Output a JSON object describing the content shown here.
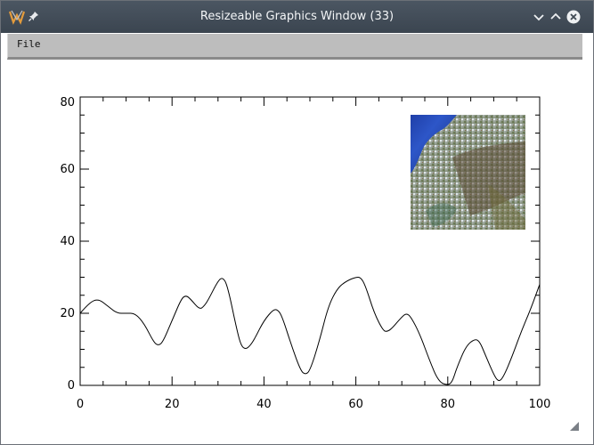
{
  "window": {
    "title": "Resizeable Graphics Window (33)",
    "menu": [
      "File"
    ]
  },
  "chart_data": {
    "type": "line",
    "xlim": [
      0,
      100
    ],
    "ylim": [
      0,
      80
    ],
    "x_ticks": [
      "0",
      "20",
      "40",
      "60",
      "80",
      "100"
    ],
    "y_ticks": [
      "0",
      "20",
      "40",
      "60",
      "80"
    ],
    "series": [
      {
        "x": [
          0,
          2,
          4,
          6,
          8,
          10,
          12,
          14,
          16,
          17,
          18,
          20,
          22,
          23,
          24,
          26,
          27,
          28,
          30,
          31,
          32,
          34,
          35,
          36,
          37,
          38,
          40,
          42,
          43,
          44,
          46,
          48,
          49,
          50,
          52,
          54,
          56,
          58,
          60,
          61,
          62,
          64,
          66,
          67,
          68,
          70,
          71,
          72,
          74,
          76,
          78,
          80,
          81,
          82,
          84,
          86,
          87,
          88,
          90,
          91,
          92,
          94,
          96,
          98,
          100
        ],
        "y": [
          20,
          23,
          24,
          22,
          20,
          20,
          20,
          17,
          12,
          11,
          12,
          18,
          24,
          25,
          24,
          21,
          22,
          24,
          29,
          30,
          28,
          16,
          11,
          10,
          11,
          13,
          18,
          21,
          21,
          19,
          11,
          4,
          3,
          4,
          12,
          22,
          27,
          29,
          30,
          30,
          28,
          20,
          15,
          15,
          16,
          19,
          20,
          19,
          14,
          7,
          1,
          0,
          1,
          5,
          11,
          13,
          12,
          9,
          3,
          1,
          2,
          8,
          15,
          21,
          28
        ]
      }
    ],
    "inset_image": "satellite-image"
  }
}
